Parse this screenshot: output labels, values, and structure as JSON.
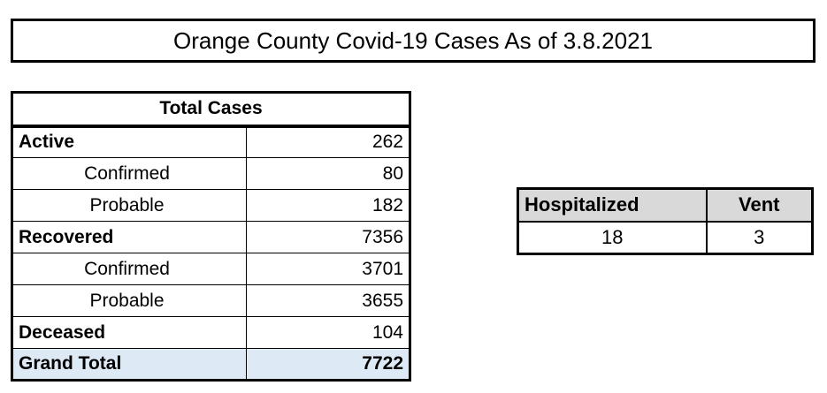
{
  "title": "Orange County Covid-19 Cases As of 3.8.2021",
  "cases": {
    "header": "Total Cases",
    "active": {
      "label": "Active",
      "value": "262"
    },
    "active_confirmed": {
      "label": "Confirmed",
      "value": "80"
    },
    "active_probable": {
      "label": "Probable",
      "value": "182"
    },
    "recovered": {
      "label": "Recovered",
      "value": "7356"
    },
    "recovered_confirmed": {
      "label": "Confirmed",
      "value": "3701"
    },
    "recovered_probable": {
      "label": "Probable",
      "value": "3655"
    },
    "deceased": {
      "label": "Deceased",
      "value": "104"
    },
    "grand_total": {
      "label": "Grand Total",
      "value": "7722"
    }
  },
  "hospital": {
    "hospitalized_label": "Hospitalized",
    "vent_label": "Vent",
    "hospitalized_value": "18",
    "vent_value": "3"
  },
  "colors": {
    "grand_total_fill": "#dde9f5",
    "hospital_header_fill": "#d9d9d9"
  }
}
